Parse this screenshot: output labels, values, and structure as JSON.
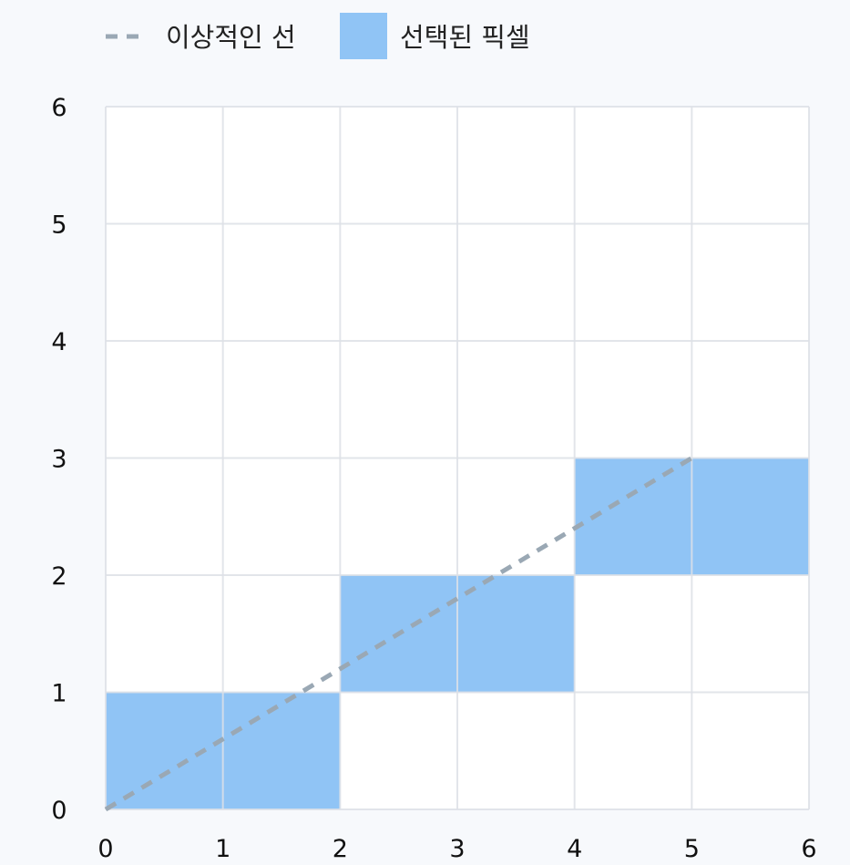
{
  "chart_data": {
    "type": "line",
    "title": "",
    "xlabel": "",
    "ylabel": "",
    "xlim": [
      0,
      6
    ],
    "ylim": [
      0,
      6
    ],
    "x_ticks": [
      0,
      1,
      2,
      3,
      4,
      5,
      6
    ],
    "y_ticks": [
      0,
      1,
      2,
      3,
      4,
      5,
      6
    ],
    "grid": true,
    "legend_position": "top-left",
    "series": [
      {
        "name": "이상적인 선",
        "kind": "dashed-line",
        "color": "#9aa8b4",
        "points": [
          [
            0,
            0
          ],
          [
            5,
            3
          ]
        ]
      },
      {
        "name": "선택된 픽셀",
        "kind": "cells",
        "color": "#90c4f5",
        "cells": [
          {
            "x0": 0,
            "x1": 2,
            "y0": 0,
            "y1": 1
          },
          {
            "x0": 2,
            "x1": 4,
            "y0": 1,
            "y1": 2
          },
          {
            "x0": 4,
            "x1": 6,
            "y0": 2,
            "y1": 3
          }
        ]
      }
    ],
    "colors": {
      "background": "#f7f9fc",
      "plot_background": "#ffffff",
      "grid": "#dde1e6",
      "ideal_line": "#9aa8b4",
      "pixel_fill": "#90c4f5"
    }
  }
}
